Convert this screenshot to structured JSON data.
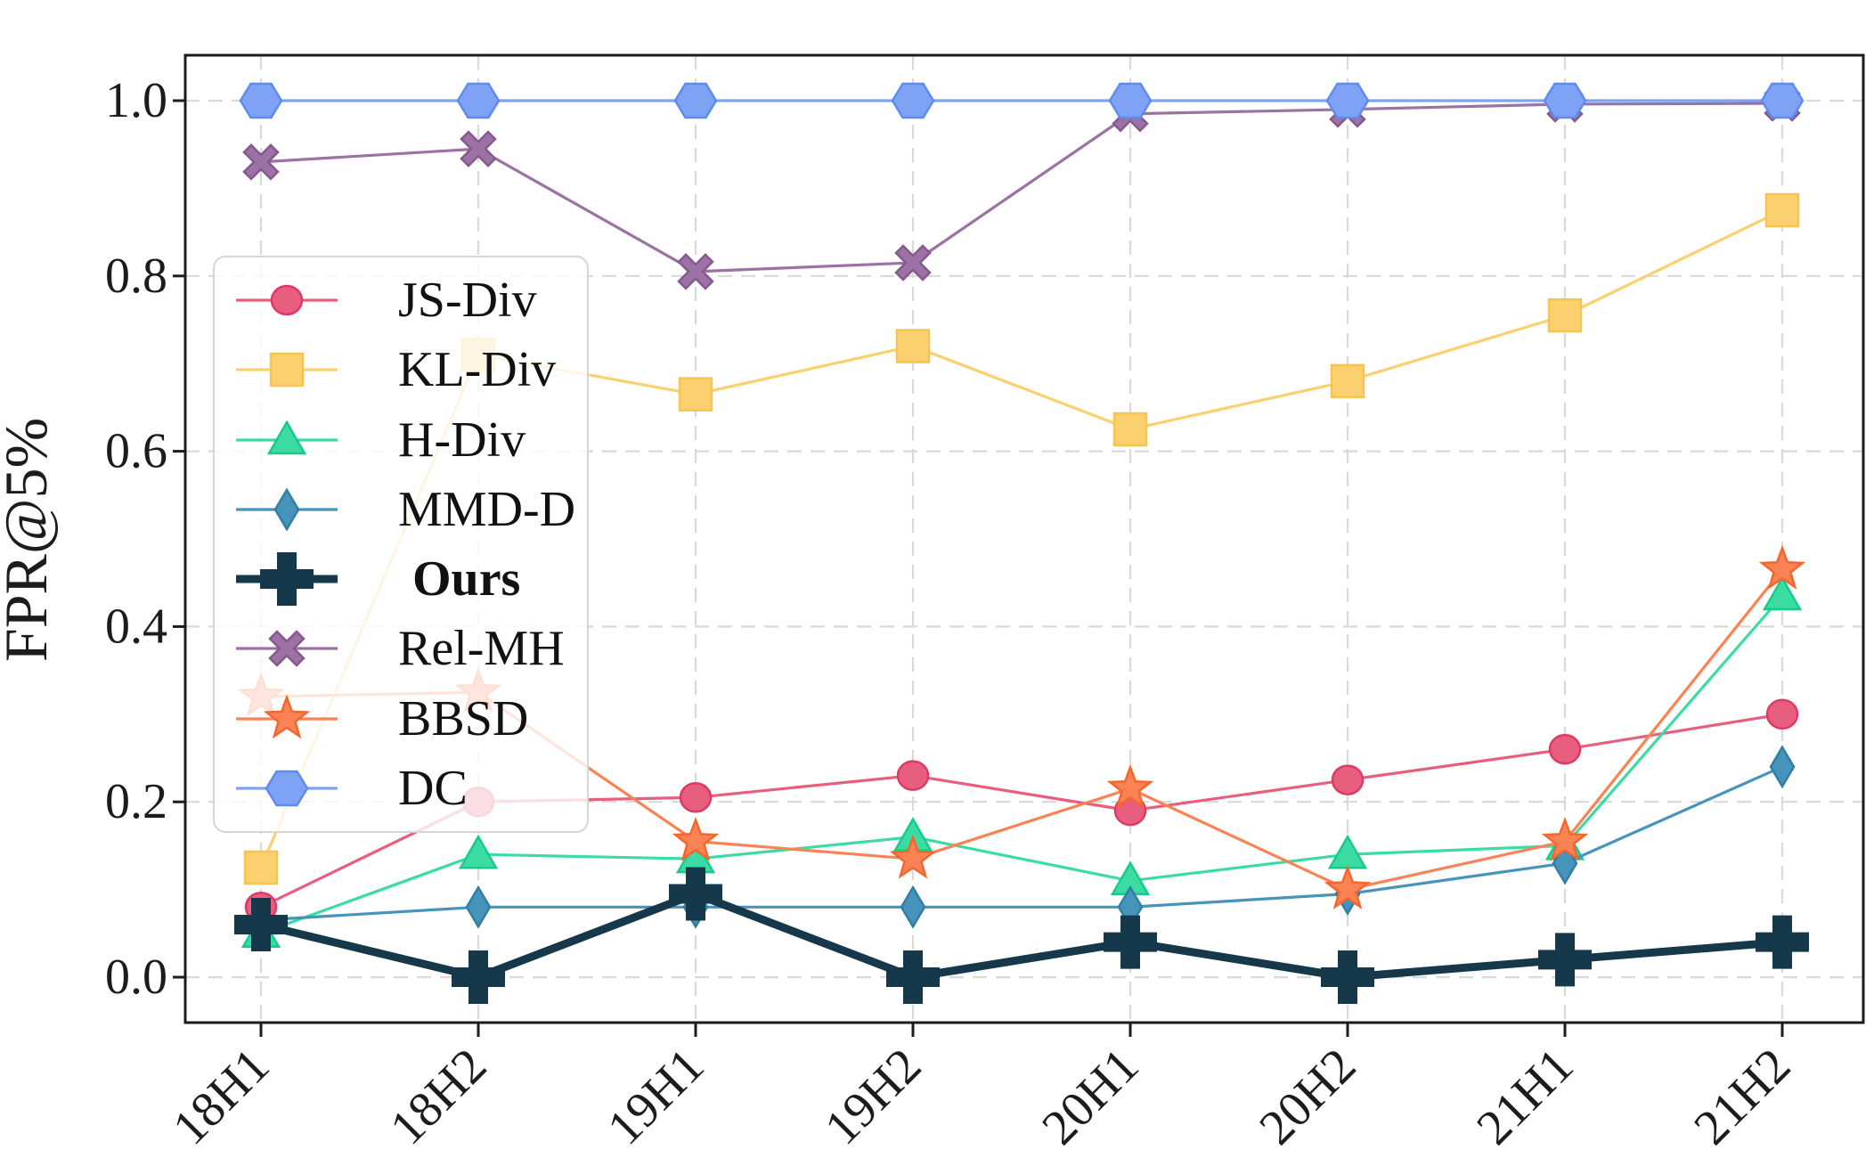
{
  "figure": {
    "ylabel": "FPR@5%",
    "background": "#ffffff",
    "spine_color": "#1c1c1c",
    "grid_color": "#d9d9d9"
  },
  "chart_data": {
    "type": "line",
    "title": "",
    "xlabel": "",
    "ylabel": "FPR@5%",
    "categories": [
      "18H1",
      "18H2",
      "19H1",
      "19H2",
      "20H1",
      "20H2",
      "21H1",
      "21H2"
    ],
    "y_ticks": [
      0.0,
      0.2,
      0.4,
      0.6,
      0.8,
      1.0
    ],
    "y_tick_labels": [
      "0.0",
      "0.2",
      "0.4",
      "0.6",
      "0.8",
      "1.0"
    ],
    "ylim": [
      -0.05,
      1.05
    ],
    "grid": true,
    "legend_position": "upper-left",
    "series": [
      {
        "name": "JS-Div",
        "marker": "circle",
        "color": "#e75e7e",
        "edge": "#de3a65",
        "bold": false,
        "values": [
          0.08,
          0.2,
          0.205,
          0.23,
          0.19,
          0.225,
          0.26,
          0.3
        ]
      },
      {
        "name": "KL-Div",
        "marker": "square",
        "color": "#fbd06e",
        "edge": "#f7c454",
        "bold": false,
        "values": [
          0.125,
          0.71,
          0.665,
          0.72,
          0.625,
          0.68,
          0.755,
          0.875
        ]
      },
      {
        "name": "H-Div",
        "marker": "triangle",
        "color": "#3bdca2",
        "edge": "#19c98e",
        "bold": false,
        "values": [
          0.05,
          0.14,
          0.135,
          0.16,
          0.11,
          0.14,
          0.15,
          0.435
        ]
      },
      {
        "name": "MMD-D",
        "marker": "thin-diamond",
        "color": "#4694bc",
        "edge": "#2f7ea4",
        "bold": false,
        "values": [
          0.065,
          0.08,
          0.08,
          0.08,
          0.08,
          0.095,
          0.13,
          0.24
        ]
      },
      {
        "name": "Ours",
        "marker": "plus",
        "color": "#15394a",
        "edge": "#15394a",
        "bold": true,
        "values": [
          0.06,
          0.0,
          0.095,
          0.0,
          0.04,
          0.0,
          0.02,
          0.04
        ]
      },
      {
        "name": "Rel-MH",
        "marker": "x",
        "color": "#9c72a4",
        "edge": "#875890",
        "bold": false,
        "values": [
          0.93,
          0.945,
          0.805,
          0.815,
          0.985,
          0.99,
          0.996,
          0.997
        ]
      },
      {
        "name": "BBSD",
        "marker": "star",
        "color": "#fa8355",
        "edge": "#f4662c",
        "bold": false,
        "values": [
          0.32,
          0.325,
          0.155,
          0.135,
          0.215,
          0.1,
          0.155,
          0.465
        ]
      },
      {
        "name": "DC",
        "marker": "hexagon",
        "color": "#7ea3f4",
        "edge": "#5e8cee",
        "bold": false,
        "values": [
          1.0,
          1.0,
          1.0,
          1.0,
          1.0,
          1.0,
          1.0,
          1.0
        ]
      }
    ]
  }
}
